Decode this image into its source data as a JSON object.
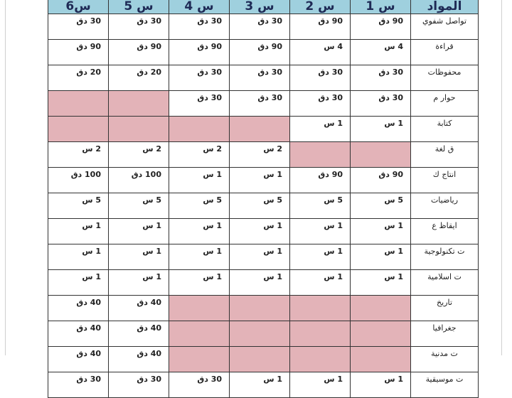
{
  "colors": {
    "header": "#9fd0de",
    "disabled": "#e3b3b8"
  },
  "headers": [
    "المواد",
    "س 1",
    "س 2",
    "س 3",
    "س 4",
    "س 5",
    "س6"
  ],
  "rows": [
    {
      "subject": "تواصل شفوي",
      "cells": [
        "90 دق",
        "90 دق",
        "30 دق",
        "30 دق",
        "30 دق",
        "30 دق"
      ]
    },
    {
      "subject": "قراءة",
      "cells": [
        "4 س",
        "4 س",
        "90 دق",
        "90 دق",
        "90 دق",
        "90 دق"
      ]
    },
    {
      "subject": "محفوظات",
      "cells": [
        "30 دق",
        "30 دق",
        "30 دق",
        "30 دق",
        "20 دق",
        "20 دق"
      ]
    },
    {
      "subject": "حوار م",
      "cells": [
        "30 دق",
        "30 دق",
        "30 دق",
        "30 دق",
        null,
        null
      ]
    },
    {
      "subject": "كتابة",
      "cells": [
        "1 س",
        "1 س",
        null,
        null,
        null,
        null
      ]
    },
    {
      "subject": "ق لغة",
      "cells": [
        null,
        null,
        "2 س",
        "2 س",
        "2 س",
        "2 س"
      ]
    },
    {
      "subject": "انتاج ك",
      "cells": [
        "90 دق",
        "90 دق",
        "1 س",
        "1 س",
        "100 دق",
        "100 دق"
      ]
    },
    {
      "subject": "رياضيات",
      "cells": [
        "5 س",
        "5 س",
        "5 س",
        "5 س",
        "5 س",
        "5 س"
      ]
    },
    {
      "subject": "ايقاظ ع",
      "cells": [
        "1 س",
        "1 س",
        "1 س",
        "1 س",
        "1 س",
        "1 س"
      ]
    },
    {
      "subject": "ت تكنولوجية",
      "cells": [
        "1 س",
        "1 س",
        "1 س",
        "1 س",
        "1 س",
        "1 س"
      ]
    },
    {
      "subject": "ت اسلامية",
      "cells": [
        "1 س",
        "1 س",
        "1 س",
        "1 س",
        "1 س",
        "1 س"
      ]
    },
    {
      "subject": "تاريخ",
      "cells": [
        null,
        null,
        null,
        null,
        "40 دق",
        "40 دق"
      ]
    },
    {
      "subject": "جغرافيا",
      "cells": [
        null,
        null,
        null,
        null,
        "40 دق",
        "40 دق"
      ]
    },
    {
      "subject": "ت مدنية",
      "cells": [
        null,
        null,
        null,
        null,
        "40 دق",
        "40 دق"
      ]
    },
    {
      "subject": "ت موسيقية",
      "cells": [
        "1 س",
        "1 س",
        "1 س",
        "30 دق",
        "30 دق",
        "30 دق"
      ]
    }
  ]
}
